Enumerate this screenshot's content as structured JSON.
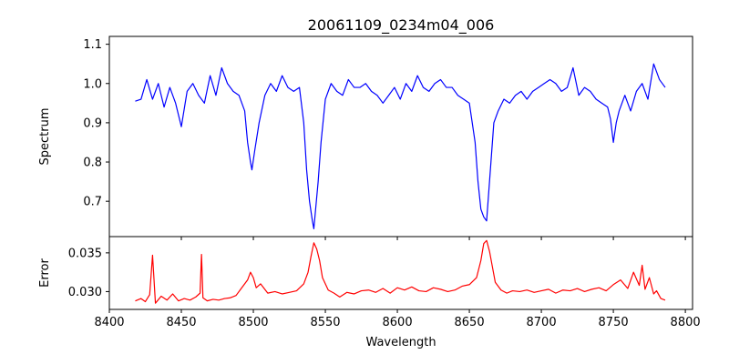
{
  "chart_data": [
    {
      "type": "line",
      "title": "20061109_0234m04_006",
      "xlabel": "",
      "ylabel": "Spectrum",
      "xlim": [
        8400,
        8805
      ],
      "ylim": [
        0.61,
        1.12
      ],
      "xticks": [
        8400,
        8450,
        8500,
        8550,
        8600,
        8650,
        8700,
        8750,
        8800
      ],
      "yticks": [
        0.7,
        0.8,
        0.9,
        1.0,
        1.1
      ],
      "ytick_labels": [
        "0.7",
        "0.8",
        "0.9",
        "1.0",
        "1.1"
      ],
      "grid": false,
      "series": [
        {
          "color": "#0000ff",
          "x": [
            8418,
            8422,
            8426,
            8430,
            8434,
            8438,
            8442,
            8446,
            8450,
            8454,
            8458,
            8462,
            8466,
            8470,
            8474,
            8478,
            8482,
            8486,
            8490,
            8494,
            8496,
            8498,
            8499,
            8501,
            8504,
            8508,
            8512,
            8516,
            8520,
            8524,
            8528,
            8532,
            8535,
            8537,
            8539,
            8541,
            8542,
            8543,
            8545,
            8547,
            8550,
            8554,
            8558,
            8562,
            8566,
            8570,
            8574,
            8578,
            8582,
            8586,
            8590,
            8594,
            8598,
            8602,
            8606,
            8610,
            8614,
            8618,
            8622,
            8626,
            8630,
            8634,
            8638,
            8642,
            8646,
            8650,
            8654,
            8656,
            8658,
            8660,
            8662,
            8663,
            8665,
            8667,
            8670,
            8674,
            8678,
            8682,
            8686,
            8690,
            8694,
            8698,
            8702,
            8706,
            8710,
            8714,
            8718,
            8722,
            8726,
            8730,
            8734,
            8738,
            8742,
            8746,
            8748,
            8750,
            8752,
            8754,
            8758,
            8762,
            8766,
            8770,
            8774,
            8778,
            8782,
            8786
          ],
          "values": [
            0.955,
            0.96,
            1.01,
            0.96,
            1.0,
            0.94,
            0.99,
            0.95,
            0.89,
            0.98,
            1.0,
            0.97,
            0.95,
            1.02,
            0.97,
            1.04,
            1.0,
            0.98,
            0.97,
            0.93,
            0.85,
            0.8,
            0.78,
            0.83,
            0.9,
            0.97,
            1.0,
            0.98,
            1.02,
            0.99,
            0.98,
            0.99,
            0.9,
            0.78,
            0.7,
            0.65,
            0.63,
            0.67,
            0.75,
            0.85,
            0.96,
            1.0,
            0.98,
            0.97,
            1.01,
            0.99,
            0.99,
            1.0,
            0.98,
            0.97,
            0.95,
            0.97,
            0.99,
            0.96,
            1.0,
            0.98,
            1.02,
            0.99,
            0.98,
            1.0,
            1.01,
            0.99,
            0.99,
            0.97,
            0.96,
            0.95,
            0.85,
            0.75,
            0.68,
            0.66,
            0.65,
            0.7,
            0.8,
            0.9,
            0.93,
            0.96,
            0.95,
            0.97,
            0.98,
            0.96,
            0.98,
            0.99,
            1.0,
            1.01,
            1.0,
            0.98,
            0.99,
            1.04,
            0.97,
            0.99,
            0.98,
            0.96,
            0.95,
            0.94,
            0.91,
            0.85,
            0.9,
            0.93,
            0.97,
            0.93,
            0.98,
            1.0,
            0.96,
            1.05,
            1.01,
            0.99
          ]
        }
      ]
    },
    {
      "type": "line",
      "title": "",
      "xlabel": "Wavelength",
      "ylabel": "Error",
      "xlim": [
        8400,
        8805
      ],
      "ylim": [
        0.0277,
        0.0371
      ],
      "xticks": [
        8400,
        8450,
        8500,
        8550,
        8600,
        8650,
        8700,
        8750,
        8800
      ],
      "xtick_labels": [
        "8400",
        "8450",
        "8500",
        "8550",
        "8600",
        "8650",
        "8700",
        "8750",
        "8800"
      ],
      "yticks": [
        0.03,
        0.035
      ],
      "ytick_labels": [
        "0.030",
        "0.035"
      ],
      "grid": false,
      "series": [
        {
          "color": "#ff0000",
          "x": [
            8418,
            8422,
            8425,
            8428,
            8430,
            8432,
            8436,
            8440,
            8444,
            8448,
            8452,
            8456,
            8460,
            8463,
            8464,
            8465,
            8468,
            8472,
            8476,
            8480,
            8484,
            8488,
            8492,
            8496,
            8498,
            8500,
            8502,
            8505,
            8510,
            8515,
            8520,
            8525,
            8530,
            8535,
            8538,
            8540,
            8542,
            8544,
            8546,
            8548,
            8552,
            8556,
            8560,
            8565,
            8570,
            8575,
            8580,
            8585,
            8590,
            8595,
            8600,
            8605,
            8610,
            8615,
            8620,
            8625,
            8630,
            8635,
            8640,
            8645,
            8650,
            8655,
            8658,
            8660,
            8662,
            8664,
            8666,
            8668,
            8672,
            8676,
            8680,
            8685,
            8690,
            8695,
            8700,
            8705,
            8710,
            8715,
            8720,
            8725,
            8730,
            8735,
            8740,
            8745,
            8750,
            8755,
            8760,
            8764,
            8768,
            8770,
            8772,
            8775,
            8778,
            8780,
            8783,
            8786
          ],
          "values": [
            0.0288,
            0.0291,
            0.0287,
            0.0296,
            0.0347,
            0.0285,
            0.0294,
            0.0289,
            0.0297,
            0.0288,
            0.0291,
            0.0289,
            0.0293,
            0.0298,
            0.0348,
            0.0292,
            0.0288,
            0.029,
            0.0289,
            0.0291,
            0.0292,
            0.0295,
            0.0305,
            0.0315,
            0.0325,
            0.0318,
            0.0305,
            0.031,
            0.0298,
            0.03,
            0.0297,
            0.0299,
            0.0301,
            0.031,
            0.0325,
            0.0345,
            0.0363,
            0.0355,
            0.034,
            0.0318,
            0.0302,
            0.0298,
            0.0293,
            0.0299,
            0.0297,
            0.0301,
            0.0302,
            0.0299,
            0.0304,
            0.0298,
            0.0305,
            0.0302,
            0.0306,
            0.0301,
            0.03,
            0.0305,
            0.0303,
            0.03,
            0.0302,
            0.0307,
            0.0309,
            0.0318,
            0.034,
            0.0362,
            0.0366,
            0.0352,
            0.0332,
            0.0312,
            0.0302,
            0.0298,
            0.0301,
            0.03,
            0.0302,
            0.0299,
            0.0301,
            0.0303,
            0.0298,
            0.0302,
            0.0301,
            0.0304,
            0.03,
            0.0303,
            0.0305,
            0.0301,
            0.0309,
            0.0315,
            0.0304,
            0.0325,
            0.0308,
            0.0334,
            0.0303,
            0.0318,
            0.0297,
            0.0301,
            0.0291,
            0.0289
          ]
        }
      ]
    }
  ]
}
